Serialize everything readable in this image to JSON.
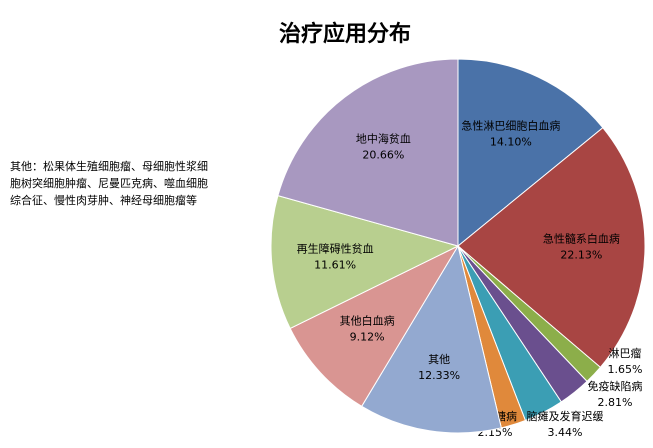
{
  "chart_data": {
    "type": "pie",
    "title": "治疗应用分布",
    "note": "其他：松果体生殖细胞瘤、母细胞性浆细胞树突细胞肿瘤、尼曼匹克病、噬血细胞综合征、慢性肉芽肿、神经母细胞瘤等",
    "categories": [
      "急性淋巴细胞白血病",
      "急性髓系白血病",
      "淋巴瘤",
      "免疫缺陷病",
      "脑瘫及发育迟缓",
      "黏多糖病",
      "其他",
      "其他白血病",
      "再生障碍性贫血",
      "地中海贫血"
    ],
    "values": [
      14.1,
      22.13,
      1.65,
      2.81,
      3.44,
      2.15,
      12.33,
      9.12,
      11.61,
      20.66
    ],
    "value_labels": [
      "14.10%",
      "22.13%",
      "1.65%",
      "2.81%",
      "3.44%",
      "2.15%",
      "12.33%",
      "9.12%",
      "11.61%",
      "20.66%"
    ],
    "colors": [
      "#4a72a8",
      "#a84543",
      "#8cae4a",
      "#6a4f8e",
      "#3b9eb4",
      "#e0893b",
      "#93a9d0",
      "#d99592",
      "#b8cf8f",
      "#a898c0"
    ]
  }
}
